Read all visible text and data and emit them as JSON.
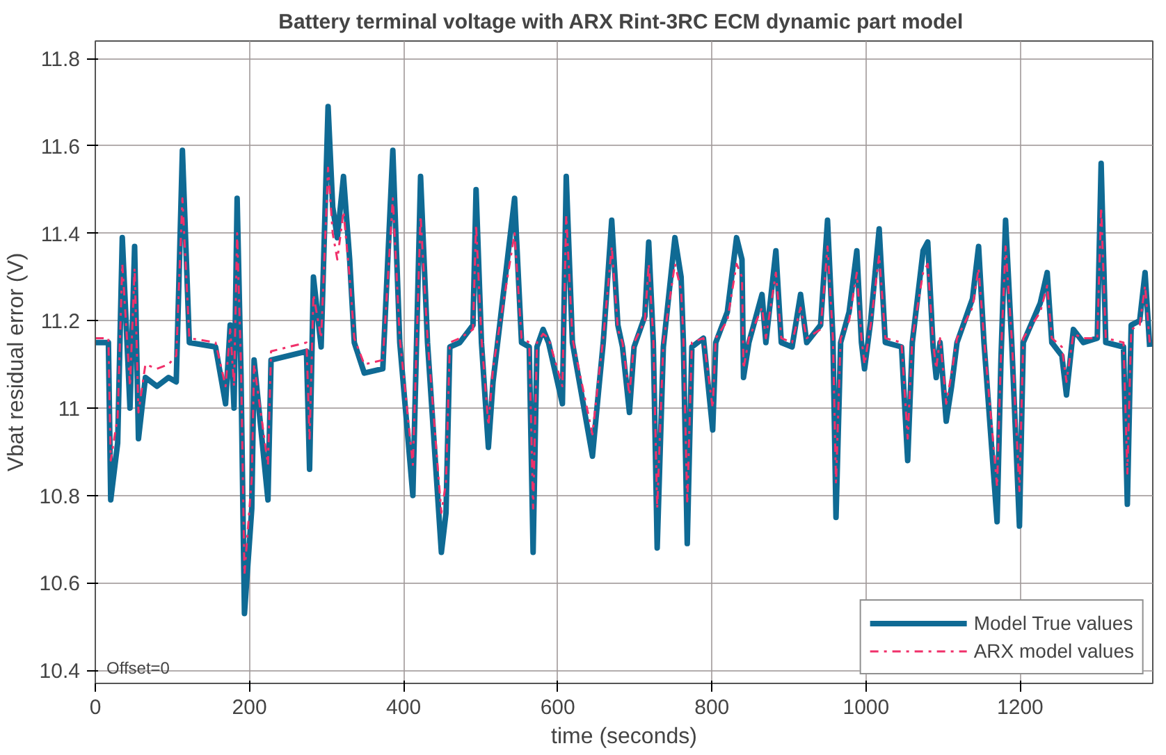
{
  "chart_data": {
    "type": "line",
    "title": "Battery  terminal voltage with ARX Rint-3RC ECM dynamic part model",
    "xlabel": "time (seconds)",
    "ylabel": "Vbat residual error (V)",
    "annotations": [
      "Offset=0"
    ],
    "xlim": [
      0,
      1372
    ],
    "ylim": [
      10.37,
      11.84
    ],
    "xticks": [
      0,
      200,
      400,
      600,
      800,
      1000,
      1200
    ],
    "yticks": [
      10.4,
      10.6,
      10.8,
      11,
      11.2,
      11.4,
      11.6,
      11.8
    ],
    "grid": true,
    "legend": "bottom right",
    "x": [
      0,
      17,
      20,
      29,
      35,
      45,
      51,
      56,
      65,
      80,
      95,
      105,
      113,
      122,
      156,
      169,
      175,
      180,
      184,
      189,
      193.5,
      203,
      206,
      224,
      228,
      274,
      278,
      283,
      293,
      302,
      308,
      314,
      322,
      330,
      336,
      349,
      373,
      386,
      395,
      412,
      422,
      431,
      449,
      455,
      460,
      473,
      490,
      494,
      501,
      510,
      516,
      522,
      544,
      553,
      563,
      568,
      573,
      581,
      588,
      606,
      611,
      619,
      645,
      653,
      659,
      670,
      678,
      684,
      693,
      699,
      713,
      718,
      724,
      729,
      737,
      752,
      760,
      763,
      768,
      774,
      789,
      801,
      805,
      820,
      832,
      839,
      841,
      848,
      865,
      870,
      883,
      890,
      904,
      915,
      923,
      941,
      950,
      957,
      961,
      967,
      978,
      988,
      994,
      998,
      1006,
      1017,
      1025,
      1046,
      1054,
      1060,
      1074,
      1080,
      1087,
      1091,
      1096,
      1104,
      1111,
      1118,
      1138,
      1146,
      1153,
      1170,
      1175,
      1181,
      1189,
      1199,
      1204,
      1226,
      1235,
      1241,
      1254,
      1260,
      1269,
      1282,
      1300,
      1305,
      1311,
      1334,
      1339,
      1344,
      1355,
      1362,
      1368
    ],
    "series": [
      {
        "name": "Model True values",
        "color": "#0f6a94",
        "line_style": "solid",
        "values": [
          11.15,
          11.15,
          10.79,
          10.92,
          11.39,
          11.0,
          11.37,
          10.93,
          11.07,
          11.05,
          11.07,
          11.06,
          11.59,
          11.15,
          11.14,
          11.01,
          11.19,
          11.0,
          11.48,
          11.08,
          10.53,
          10.77,
          11.11,
          10.79,
          11.11,
          11.13,
          10.86,
          11.3,
          11.14,
          11.69,
          11.46,
          11.39,
          11.53,
          11.34,
          11.15,
          11.08,
          11.09,
          11.59,
          11.15,
          10.8,
          11.53,
          11.15,
          10.67,
          10.76,
          11.14,
          11.15,
          11.19,
          11.5,
          11.15,
          10.91,
          11.06,
          11.15,
          11.48,
          11.15,
          11.14,
          10.67,
          11.14,
          11.18,
          11.15,
          11.01,
          11.53,
          11.15,
          10.89,
          11.04,
          11.15,
          11.43,
          11.19,
          11.14,
          10.99,
          11.14,
          11.21,
          11.38,
          11.15,
          10.68,
          11.14,
          11.39,
          11.3,
          11.15,
          10.69,
          11.14,
          11.16,
          10.95,
          11.15,
          11.22,
          11.39,
          11.34,
          11.07,
          11.15,
          11.26,
          11.15,
          11.36,
          11.15,
          11.14,
          11.26,
          11.15,
          11.19,
          11.43,
          11.16,
          10.75,
          11.15,
          11.22,
          11.36,
          11.15,
          11.09,
          11.2,
          11.41,
          11.15,
          11.14,
          10.88,
          11.15,
          11.36,
          11.38,
          11.14,
          11.07,
          11.15,
          10.97,
          11.05,
          11.15,
          11.25,
          11.37,
          11.15,
          10.74,
          11.11,
          11.43,
          11.15,
          10.73,
          11.15,
          11.24,
          11.31,
          11.15,
          11.12,
          11.03,
          11.18,
          11.15,
          11.16,
          11.56,
          11.15,
          11.14,
          10.78,
          11.19,
          11.2,
          11.31,
          11.14
        ]
      },
      {
        "name": "ARX model values",
        "color": "#f0306a",
        "line_style": "dashdot",
        "values": [
          11.16,
          11.16,
          10.88,
          10.98,
          11.33,
          11.05,
          11.32,
          10.99,
          11.1,
          11.09,
          11.1,
          11.12,
          11.48,
          11.16,
          11.15,
          11.05,
          11.18,
          11.05,
          11.4,
          11.1,
          10.62,
          10.84,
          11.1,
          10.87,
          11.13,
          11.15,
          10.93,
          11.26,
          11.16,
          11.55,
          11.4,
          11.34,
          11.45,
          11.3,
          11.16,
          11.1,
          11.11,
          11.48,
          11.16,
          10.87,
          11.44,
          11.16,
          10.76,
          10.83,
          11.15,
          11.16,
          11.18,
          11.42,
          11.16,
          10.96,
          11.09,
          11.16,
          11.4,
          11.16,
          11.15,
          10.77,
          11.15,
          11.17,
          11.16,
          11.05,
          11.44,
          11.16,
          10.94,
          11.07,
          11.16,
          11.37,
          11.18,
          11.15,
          11.03,
          11.15,
          11.2,
          11.33,
          11.16,
          10.77,
          11.15,
          11.33,
          11.27,
          11.16,
          10.78,
          11.15,
          11.16,
          11.0,
          11.16,
          11.2,
          11.33,
          11.3,
          11.09,
          11.16,
          11.23,
          11.16,
          11.31,
          11.16,
          11.15,
          11.23,
          11.16,
          11.18,
          11.37,
          11.16,
          10.83,
          11.16,
          11.2,
          11.31,
          11.16,
          11.1,
          11.19,
          11.35,
          11.16,
          11.15,
          10.93,
          11.16,
          11.31,
          11.33,
          11.15,
          11.09,
          11.16,
          11.01,
          11.08,
          11.16,
          11.23,
          11.32,
          11.16,
          10.82,
          11.12,
          11.37,
          11.16,
          10.81,
          11.16,
          11.22,
          11.28,
          11.16,
          11.14,
          11.06,
          11.17,
          11.16,
          11.16,
          11.46,
          11.16,
          11.15,
          10.85,
          11.18,
          11.19,
          11.28,
          11.15
        ]
      }
    ]
  }
}
